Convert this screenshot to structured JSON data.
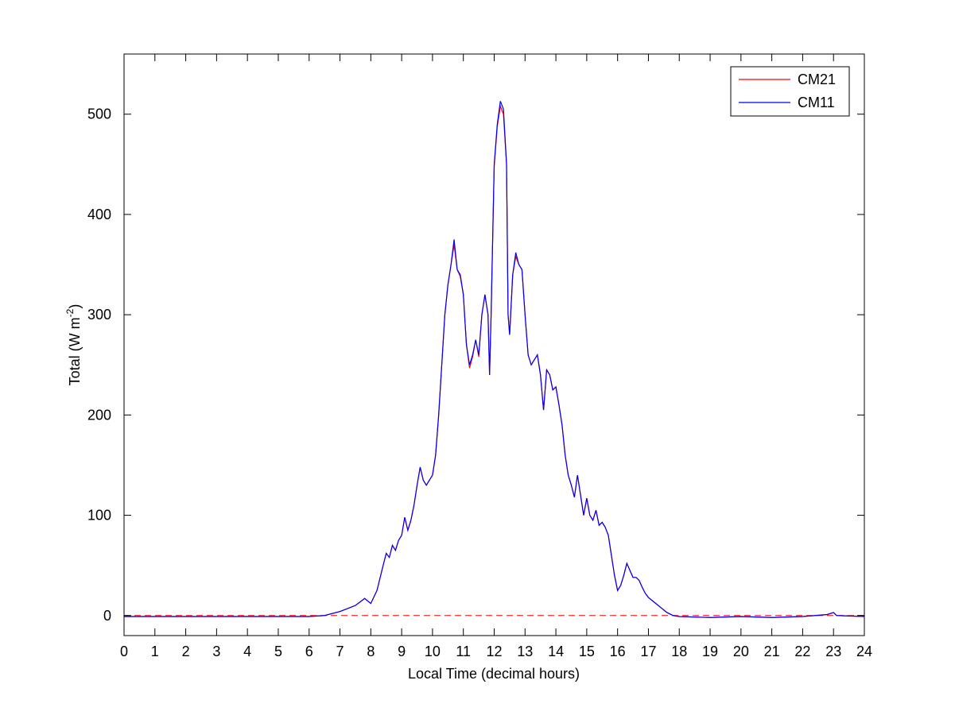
{
  "chart_data": {
    "type": "line",
    "xlabel": "Local Time (decimal hours)",
    "ylabel": [
      "Total (W m",
      "-2",
      ")"
    ],
    "x": [
      0,
      1,
      2,
      3,
      4,
      5,
      6,
      6.5,
      7,
      7.5,
      7.8,
      8,
      8.2,
      8.4,
      8.5,
      8.6,
      8.7,
      8.8,
      8.9,
      9,
      9.1,
      9.2,
      9.3,
      9.4,
      9.5,
      9.6,
      9.7,
      9.8,
      9.9,
      10,
      10.1,
      10.2,
      10.3,
      10.4,
      10.5,
      10.6,
      10.7,
      10.8,
      10.9,
      11,
      11.1,
      11.2,
      11.3,
      11.4,
      11.5,
      11.6,
      11.7,
      11.8,
      11.85,
      11.9,
      12,
      12.1,
      12.2,
      12.3,
      12.4,
      12.45,
      12.5,
      12.6,
      12.7,
      12.8,
      12.9,
      13,
      13.1,
      13.2,
      13.3,
      13.4,
      13.5,
      13.6,
      13.7,
      13.8,
      13.9,
      14,
      14.1,
      14.2,
      14.3,
      14.4,
      14.5,
      14.6,
      14.7,
      14.8,
      14.9,
      15,
      15.1,
      15.2,
      15.3,
      15.4,
      15.5,
      15.6,
      15.7,
      15.8,
      15.9,
      16,
      16.1,
      16.2,
      16.3,
      16.4,
      16.5,
      16.6,
      16.7,
      16.8,
      16.9,
      17,
      17.2,
      17.4,
      17.6,
      17.8,
      18,
      19,
      20,
      21,
      22,
      22.8,
      23,
      23.1,
      24
    ],
    "series": [
      {
        "name": "CM21",
        "color": "#ff0000",
        "values": [
          -1,
          -1,
          -1,
          -1,
          -1,
          -1,
          -1,
          0,
          4,
          10,
          17,
          12,
          25,
          50,
          62,
          58,
          70,
          65,
          75,
          80,
          98,
          85,
          95,
          110,
          130,
          148,
          135,
          130,
          135,
          140,
          160,
          200,
          250,
          300,
          330,
          350,
          370,
          345,
          338,
          320,
          270,
          247,
          258,
          275,
          258,
          300,
          320,
          300,
          240,
          300,
          448,
          488,
          508,
          500,
          450,
          300,
          280,
          340,
          358,
          350,
          345,
          300,
          260,
          250,
          255,
          260,
          240,
          205,
          245,
          240,
          225,
          228,
          210,
          190,
          160,
          140,
          130,
          118,
          140,
          120,
          100,
          117,
          100,
          95,
          105,
          90,
          93,
          88,
          80,
          60,
          40,
          25,
          30,
          40,
          52,
          45,
          38,
          38,
          35,
          28,
          22,
          18,
          13,
          8,
          3,
          0,
          -1,
          -2,
          -1,
          -2,
          -1,
          1,
          3,
          0,
          -1
        ]
      },
      {
        "name": "CM11",
        "color": "#0000ff",
        "values": [
          -1,
          -1,
          -1,
          -1,
          -1,
          -1,
          -1,
          0,
          4,
          10,
          17,
          12,
          25,
          50,
          62,
          58,
          70,
          65,
          75,
          80,
          98,
          85,
          95,
          110,
          130,
          148,
          135,
          130,
          135,
          140,
          160,
          200,
          250,
          300,
          330,
          350,
          375,
          345,
          340,
          320,
          270,
          250,
          260,
          275,
          260,
          300,
          320,
          300,
          240,
          300,
          450,
          490,
          513,
          505,
          450,
          300,
          280,
          340,
          362,
          350,
          345,
          300,
          260,
          250,
          255,
          260,
          240,
          205,
          245,
          240,
          225,
          228,
          210,
          190,
          160,
          140,
          130,
          118,
          140,
          120,
          100,
          117,
          100,
          95,
          105,
          90,
          93,
          88,
          80,
          60,
          40,
          25,
          30,
          40,
          52,
          45,
          38,
          38,
          35,
          28,
          22,
          18,
          13,
          8,
          3,
          0,
          -1,
          -2,
          -1,
          -2,
          -1,
          1,
          3,
          0,
          -1
        ]
      }
    ],
    "zero_line": {
      "y": 0,
      "color": "#ff0000",
      "style": "dashed"
    },
    "xlim": [
      0,
      24
    ],
    "xticks": [
      0,
      1,
      2,
      3,
      4,
      5,
      6,
      7,
      8,
      9,
      10,
      11,
      12,
      13,
      14,
      15,
      16,
      17,
      18,
      19,
      20,
      21,
      22,
      23,
      24
    ],
    "ylim": [
      -20,
      560
    ],
    "yticks": [
      0,
      100,
      200,
      300,
      400,
      500
    ],
    "grid": false,
    "legend": "upper right"
  }
}
